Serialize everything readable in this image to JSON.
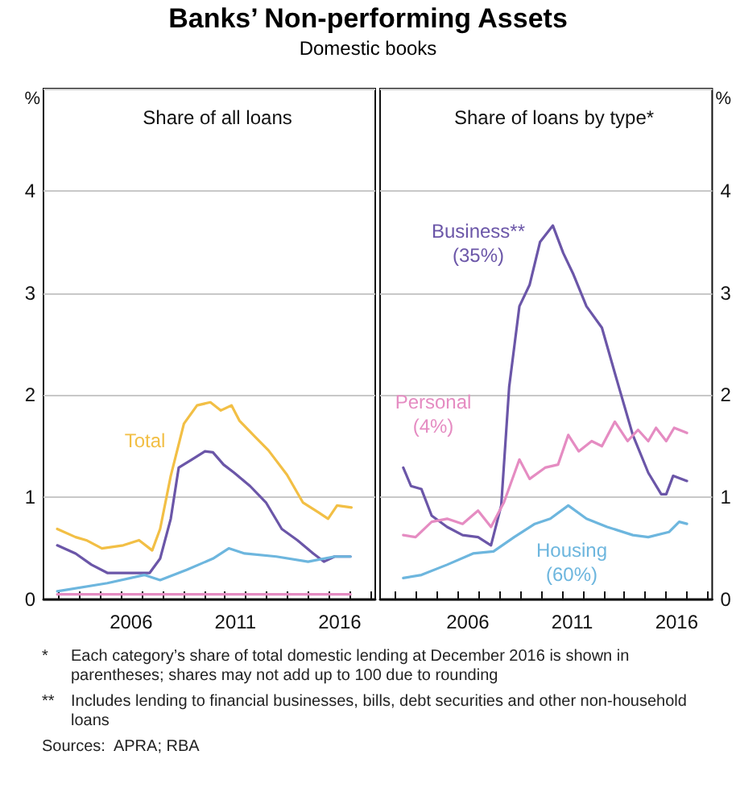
{
  "chart_data": [
    {
      "type": "other",
      "title": "Banks’ Non-performing Assets",
      "subtitle": "Domestic books",
      "annotations": [
        "*\tEach category’s share of total domestic lending at December 2016 is shown in parentheses; shares may not add up to 100 due to rounding",
        "**\tIncludes lending to financial businesses, bills, debt securities and other non-household loans",
        "Sources:  APRA; RBA"
      ]
    },
    {
      "type": "line",
      "title": "Share of all loans",
      "ylabel": "%",
      "xlim": [
        2002.3,
        2018.2
      ],
      "xticks": [
        {
          "value": 2003,
          "label": null
        },
        {
          "value": 2004,
          "label": null
        },
        {
          "value": 2005,
          "label": null
        },
        {
          "value": 2006,
          "label": null
        },
        {
          "value": 2006.5,
          "label": "2006"
        },
        {
          "value": 2007,
          "label": null
        },
        {
          "value": 2008,
          "label": null
        },
        {
          "value": 2009,
          "label": null
        },
        {
          "value": 2010,
          "label": null
        },
        {
          "value": 2011,
          "label": null
        },
        {
          "value": 2011.5,
          "label": "2011"
        },
        {
          "value": 2012,
          "label": null
        },
        {
          "value": 2013,
          "label": null
        },
        {
          "value": 2014,
          "label": null
        },
        {
          "value": 2015,
          "label": null
        },
        {
          "value": 2016,
          "label": null
        },
        {
          "value": 2016.5,
          "label": "2016"
        },
        {
          "value": 2017,
          "label": null
        },
        {
          "value": 2018,
          "label": null
        }
      ],
      "ylim": [
        0,
        5
      ],
      "yticks": [
        0,
        1,
        2,
        3,
        4
      ],
      "grid": "y",
      "legend": false,
      "marker": "none",
      "line_style": "solid",
      "series": [
        {
          "name": "Total",
          "color": "#f2bf45",
          "x": [
            2002.96,
            2003.84,
            2004.35,
            2005.1,
            2006.12,
            2006.88,
            2007.51,
            2007.89,
            2008.4,
            2009.03,
            2009.66,
            2010.3,
            2010.8,
            2011.31,
            2011.69,
            2012.45,
            2013.08,
            2013.97,
            2014.73,
            2015.49,
            2015.94,
            2016.37,
            2017.06
          ],
          "values": [
            0.69,
            0.61,
            0.58,
            0.5,
            0.53,
            0.58,
            0.48,
            0.69,
            1.21,
            1.72,
            1.9,
            1.93,
            1.85,
            1.9,
            1.75,
            1.59,
            1.46,
            1.22,
            0.95,
            0.85,
            0.79,
            0.92,
            0.9
          ]
        },
        {
          "color": "#6b56a8",
          "x": [
            2002.96,
            2003.84,
            2004.6,
            2005.36,
            2006.37,
            2007.39,
            2007.89,
            2008.4,
            2008.78,
            2009.41,
            2010.04,
            2010.42,
            2010.93,
            2011.44,
            2012.2,
            2012.96,
            2013.72,
            2014.47,
            2015.23,
            2015.74,
            2016.25,
            2017.01
          ],
          "values": [
            0.53,
            0.45,
            0.34,
            0.26,
            0.26,
            0.26,
            0.4,
            0.79,
            1.29,
            1.37,
            1.45,
            1.44,
            1.32,
            1.24,
            1.11,
            0.95,
            0.69,
            0.58,
            0.45,
            0.37,
            0.42,
            0.42
          ]
        },
        {
          "color": "#6db6de",
          "x": [
            2002.96,
            2005.36,
            2007.13,
            2007.89,
            2009.16,
            2010.42,
            2011.18,
            2011.94,
            2013.46,
            2014.98,
            2016.25,
            2017.01
          ],
          "values": [
            0.08,
            0.16,
            0.24,
            0.19,
            0.29,
            0.4,
            0.5,
            0.45,
            0.42,
            0.37,
            0.42,
            0.42
          ]
        },
        {
          "color": "#e58cc2",
          "x": [
            2002.96,
            2017.01
          ],
          "values": [
            0.05,
            0.05
          ]
        }
      ]
    },
    {
      "type": "line",
      "title": "Share of loans by type*",
      "y2label": "%",
      "xlim": [
        2002.3,
        2018.2
      ],
      "xticks": [
        {
          "value": 2003,
          "label": null
        },
        {
          "value": 2004,
          "label": null
        },
        {
          "value": 2005,
          "label": null
        },
        {
          "value": 2006,
          "label": null
        },
        {
          "value": 2006.5,
          "label": "2006"
        },
        {
          "value": 2007,
          "label": null
        },
        {
          "value": 2008,
          "label": null
        },
        {
          "value": 2009,
          "label": null
        },
        {
          "value": 2010,
          "label": null
        },
        {
          "value": 2011,
          "label": null
        },
        {
          "value": 2011.5,
          "label": "2011"
        },
        {
          "value": 2012,
          "label": null
        },
        {
          "value": 2013,
          "label": null
        },
        {
          "value": 2014,
          "label": null
        },
        {
          "value": 2015,
          "label": null
        },
        {
          "value": 2016,
          "label": null
        },
        {
          "value": 2016.5,
          "label": "2016"
        },
        {
          "value": 2017,
          "label": null
        },
        {
          "value": 2018,
          "label": null
        }
      ],
      "y2lim": [
        0,
        5
      ],
      "y2ticks": [
        0,
        1,
        2,
        3,
        4
      ],
      "grid": "y",
      "legend": false,
      "marker": "none",
      "line_style": "solid",
      "series": [
        {
          "name": "Business**\n(35%)",
          "color": "#6b56a8",
          "axis": "y2",
          "x": [
            2003.41,
            2003.78,
            2004.28,
            2004.77,
            2005.51,
            2006.25,
            2006.99,
            2007.61,
            2008.1,
            2008.48,
            2008.97,
            2009.46,
            2009.96,
            2010.57,
            2011.07,
            2011.56,
            2012.18,
            2012.92,
            2013.66,
            2014.4,
            2015.14,
            2015.76,
            2016.0,
            2016.33,
            2016.99
          ],
          "values": [
            1.29,
            1.11,
            1.08,
            0.82,
            0.71,
            0.63,
            0.61,
            0.53,
            0.92,
            2.08,
            2.87,
            3.08,
            3.5,
            3.66,
            3.39,
            3.18,
            2.87,
            2.66,
            2.13,
            1.61,
            1.24,
            1.03,
            1.03,
            1.21,
            1.16
          ]
        },
        {
          "name": "Personal\n(4%)",
          "color": "#e58cc2",
          "axis": "y2",
          "x": [
            2003.41,
            2004.0,
            2004.77,
            2005.51,
            2006.25,
            2006.99,
            2007.61,
            2008.23,
            2008.97,
            2009.46,
            2010.2,
            2010.82,
            2011.31,
            2011.81,
            2012.43,
            2012.92,
            2013.54,
            2014.15,
            2014.65,
            2015.14,
            2015.51,
            2016.0,
            2016.38,
            2016.99
          ],
          "values": [
            0.63,
            0.61,
            0.76,
            0.79,
            0.74,
            0.87,
            0.71,
            0.95,
            1.37,
            1.18,
            1.29,
            1.32,
            1.61,
            1.45,
            1.55,
            1.5,
            1.74,
            1.55,
            1.66,
            1.55,
            1.68,
            1.55,
            1.68,
            1.63
          ]
        },
        {
          "name": "Housing\n(60%)",
          "color": "#6db6de",
          "axis": "y2",
          "x": [
            2003.41,
            2004.28,
            2005.51,
            2006.75,
            2007.73,
            2008.72,
            2009.71,
            2010.45,
            2011.31,
            2012.18,
            2013.17,
            2014.4,
            2015.14,
            2016.13,
            2016.62,
            2016.99
          ],
          "values": [
            0.21,
            0.24,
            0.34,
            0.45,
            0.47,
            0.61,
            0.74,
            0.79,
            0.92,
            0.79,
            0.71,
            0.63,
            0.61,
            0.66,
            0.76,
            0.74
          ]
        }
      ]
    }
  ]
}
